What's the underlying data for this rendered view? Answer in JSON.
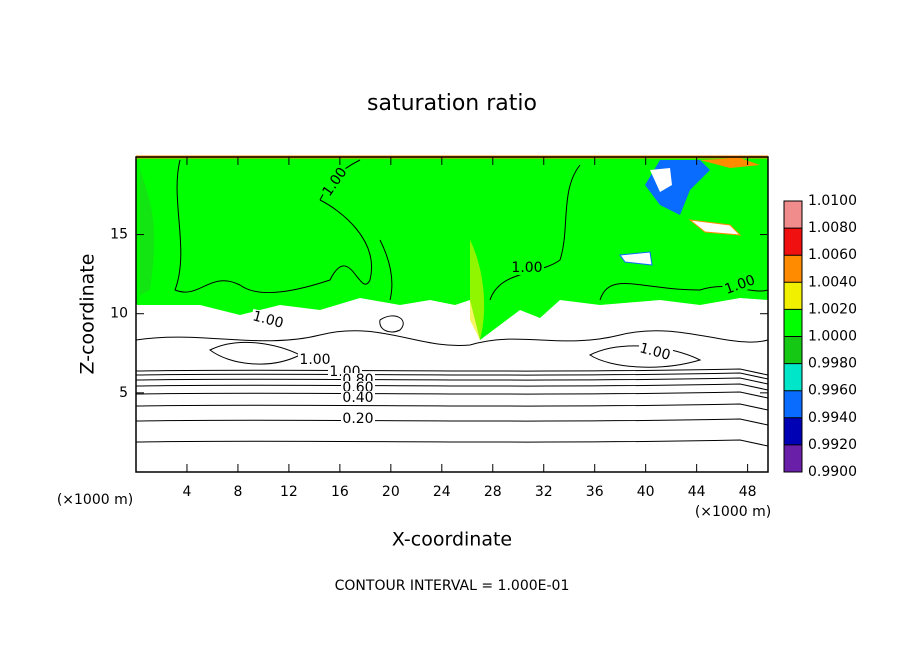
{
  "chart_data": {
    "type": "contour",
    "title": "saturation ratio",
    "x_label": "X-coordinate",
    "y_label": "Z-coordinate",
    "x_unit": "(×1000 m)",
    "x_unit_right": "(×1000 m)",
    "footer": "CONTOUR INTERVAL = 1.000E-01",
    "xlim": [
      0,
      49.6
    ],
    "xticks": [
      4,
      8,
      12,
      16,
      20,
      24,
      28,
      32,
      36,
      40,
      44,
      48
    ],
    "ylim": [
      0,
      19.9
    ],
    "yticks": [
      5,
      10,
      15
    ],
    "contour_labels": [
      "1.00",
      "1.00",
      "1.00",
      "1.00",
      "1.00",
      "1.00",
      "1.00",
      "0.80",
      "0.60",
      "0.40",
      "0.20"
    ],
    "colorbar": {
      "lim": [
        0.99,
        1.01
      ],
      "ticks": [
        {
          "value": 0.99,
          "label": "0.9900"
        },
        {
          "value": 0.992,
          "label": "0.9920"
        },
        {
          "value": 0.994,
          "label": "0.9940"
        },
        {
          "value": 0.996,
          "label": "0.9960"
        },
        {
          "value": 0.998,
          "label": "0.9980"
        },
        {
          "value": 1.0,
          "label": "1.0000"
        },
        {
          "value": 1.002,
          "label": "1.0020"
        },
        {
          "value": 1.004,
          "label": "1.0040"
        },
        {
          "value": 1.006,
          "label": "1.0060"
        },
        {
          "value": 1.008,
          "label": "1.0080"
        },
        {
          "value": 1.01,
          "label": "1.0100"
        }
      ],
      "colors": [
        "#6a1fa8",
        "#0000b4",
        "#0a6cff",
        "#00e6c8",
        "#14c814",
        "#00ff00",
        "#f0f000",
        "#ff8c00",
        "#f01010",
        "#f08c8c"
      ]
    }
  }
}
